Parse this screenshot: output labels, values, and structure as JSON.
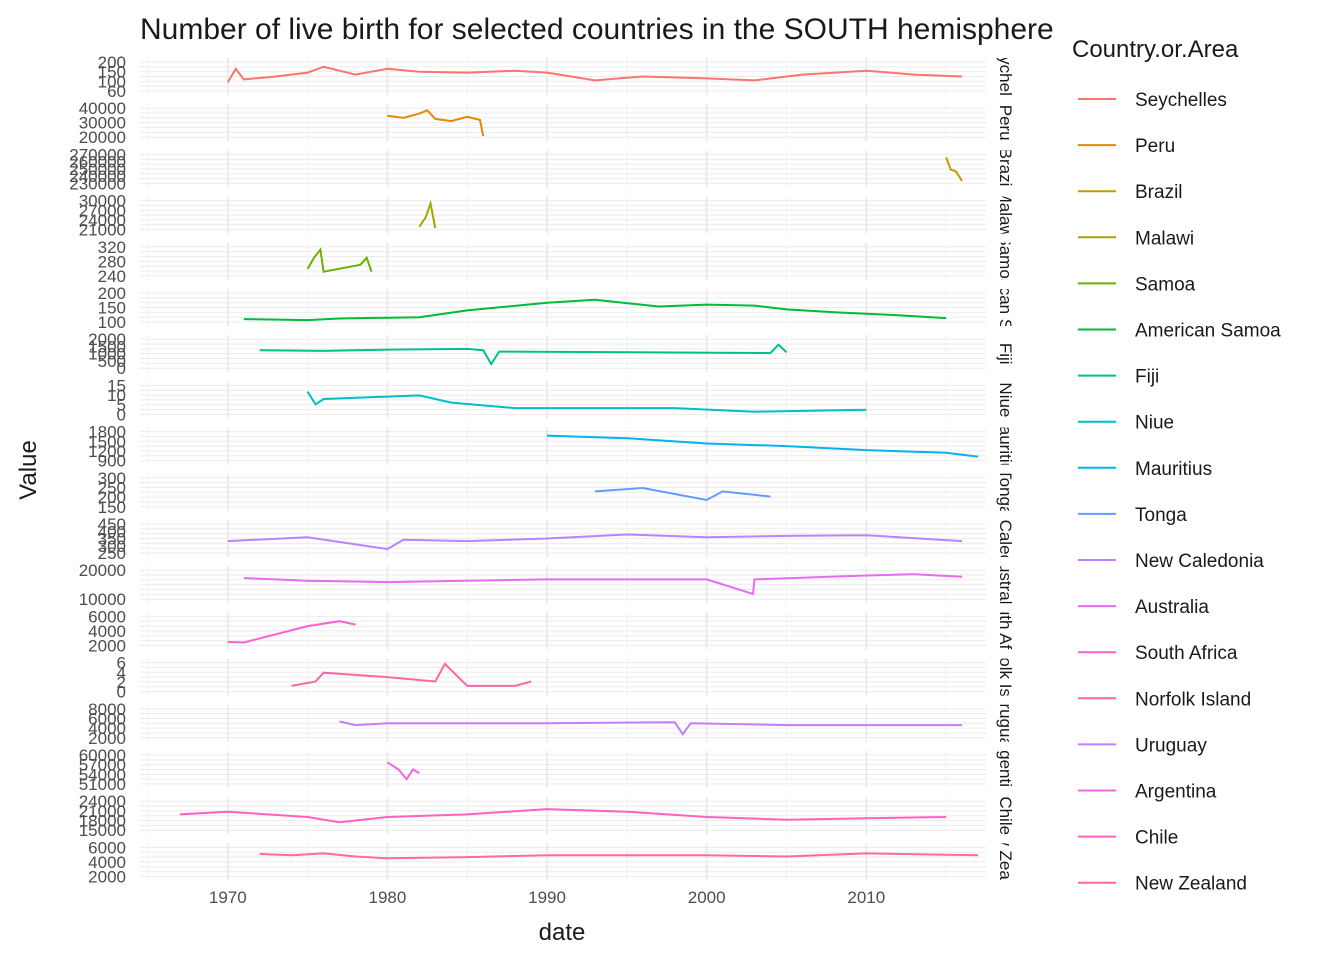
{
  "chart_data": {
    "type": "line",
    "title": "Number of live birth for selected countries in the SOUTH hemisphere",
    "xlabel": "date",
    "ylabel": "Value",
    "xlim": [
      1964.5,
      2017.5
    ],
    "x_ticks": [
      "1970",
      "1980",
      "1990",
      "2000",
      "2010"
    ],
    "grid": true,
    "legend": {
      "title": "Country.or.Area",
      "placement": "right"
    },
    "series": [
      {
        "name": "Seychelles",
        "strip": "Seychelles",
        "color": "#F8766D",
        "ylim": [
          55,
          205
        ],
        "y_ticks": [
          "200",
          "150",
          "100",
          "60"
        ],
        "x": [
          1970,
          1970.5,
          1971,
          1973,
          1975,
          1976,
          1978,
          1980,
          1982,
          1985,
          1988,
          1990,
          1993,
          1996,
          2000,
          2003,
          2006,
          2010,
          2013,
          2016
        ],
        "y": [
          100,
          170,
          115,
          130,
          150,
          180,
          140,
          170,
          155,
          150,
          160,
          150,
          110,
          130,
          120,
          110,
          140,
          160,
          140,
          130
        ]
      },
      {
        "name": "Peru",
        "strip": "Peru",
        "color": "#E58700",
        "ylim": [
          19000,
          46000
        ],
        "y_ticks": [
          "40000",
          "30000",
          "20000"
        ],
        "x": [
          1980,
          1981,
          1982,
          1982.5,
          1983,
          1984,
          1985,
          1985.8,
          1986
        ],
        "y": [
          39000,
          37000,
          41000,
          44000,
          36000,
          34000,
          38000,
          35000,
          20000
        ]
      },
      {
        "name": "Brazil",
        "strip": "Brazil",
        "color": "#C99800",
        "ylim": [
          228000,
          275000
        ],
        "y_ticks": [
          "270000",
          "260000",
          "250000",
          "240000",
          "230000"
        ],
        "x": [
          2015,
          2015.3,
          2015.6,
          2016
        ],
        "y": [
          270000,
          250000,
          248000,
          232000
        ]
      },
      {
        "name": "Malawi",
        "strip": "Malawi",
        "color": "#A3A500",
        "ylim": [
          20500,
          31000
        ],
        "y_ticks": [
          "30000",
          "27000",
          "24000",
          "21000"
        ],
        "x": [
          1982,
          1982.4,
          1982.7,
          1983
        ],
        "y": [
          21500,
          25000,
          30000,
          21000
        ]
      },
      {
        "name": "Samoa",
        "strip": "Samoa",
        "color": "#6BB100",
        "ylim": [
          225,
          330
        ],
        "y_ticks": [
          "320",
          "280",
          "240"
        ],
        "x": [
          1975,
          1975.4,
          1975.8,
          1976,
          1978.3,
          1978.7,
          1979
        ],
        "y": [
          250,
          290,
          320,
          240,
          265,
          290,
          240
        ]
      },
      {
        "name": "American Samoa",
        "strip": "American Samoa",
        "color": "#00BA38",
        "ylim": [
          60,
          210
        ],
        "y_ticks": [
          "200",
          "150",
          "100"
        ],
        "x": [
          1971,
          1975,
          1977,
          1982,
          1985,
          1990,
          1993,
          1997,
          2000,
          2003,
          2005,
          2008,
          2012,
          2015
        ],
        "y": [
          75,
          70,
          78,
          85,
          120,
          160,
          175,
          140,
          150,
          145,
          125,
          110,
          95,
          80
        ]
      },
      {
        "name": "Fiji",
        "strip": "Fiji",
        "color": "#00C08B",
        "ylim": [
          0,
          2100
        ],
        "y_ticks": [
          "2000",
          "1500",
          "1000",
          "500",
          "0"
        ],
        "x": [
          1972,
          1976,
          1980,
          1985,
          1986,
          1986.5,
          1987,
          2004,
          2004.5,
          2005
        ],
        "y": [
          1300,
          1250,
          1350,
          1400,
          1300,
          300,
          1200,
          1100,
          1700,
          1150
        ]
      },
      {
        "name": "Niue",
        "strip": "Niue",
        "color": "#00BFC4",
        "ylim": [
          -0.5,
          15.5
        ],
        "y_ticks": [
          "15",
          "10",
          "5",
          "0"
        ],
        "x": [
          1975,
          1975.5,
          1976,
          1982,
          1984,
          1988,
          1998,
          2003,
          2009.5,
          2010
        ],
        "y": [
          12,
          5,
          8,
          10,
          6,
          3,
          3,
          1,
          2,
          2
        ]
      },
      {
        "name": "Mauritius",
        "strip": "Mauritius",
        "color": "#00B4F0",
        "ylim": [
          800,
          1900
        ],
        "y_ticks": [
          "1800",
          "1500",
          "1200",
          "900"
        ],
        "x": [
          1990,
          1995,
          2000,
          2005,
          2010,
          2015,
          2017
        ],
        "y": [
          1750,
          1650,
          1450,
          1350,
          1200,
          1100,
          950
        ]
      },
      {
        "name": "Tonga",
        "strip": "Tonga",
        "color": "#619CFF",
        "ylim": [
          140,
          310
        ],
        "y_ticks": [
          "300",
          "250",
          "200",
          "150"
        ],
        "x": [
          1993,
          1996,
          2000,
          2001,
          2004
        ],
        "y": [
          230,
          250,
          180,
          230,
          200
        ]
      },
      {
        "name": "New Caledonia",
        "strip": "New Caledonia",
        "color": "#B983FF",
        "ylim": [
          240,
          460
        ],
        "y_ticks": [
          "450",
          "400",
          "350",
          "300",
          "250"
        ],
        "x": [
          1970,
          1975,
          1980,
          1981,
          1985,
          1990,
          1995,
          2000,
          2005,
          2010,
          2016
        ],
        "y": [
          330,
          360,
          270,
          340,
          330,
          350,
          380,
          360,
          370,
          375,
          330
        ]
      },
      {
        "name": "Australia",
        "strip": "Australia",
        "color": "#E76BF3",
        "ylim": [
          5000,
          27000
        ],
        "y_ticks": [
          "20000",
          "10000"
        ],
        "x": [
          1971,
          1975,
          1980,
          1990,
          2000,
          2002.9,
          2003,
          2010,
          2013,
          2016
        ],
        "y": [
          21000,
          19000,
          18000,
          20000,
          20000,
          9000,
          20000,
          23000,
          24000,
          22000
        ]
      },
      {
        "name": "South Africa",
        "strip": "South Africa",
        "color": "#FD61D1",
        "ylim": [
          1500,
          7500
        ],
        "y_ticks": [
          "6000",
          "4000",
          "2000"
        ],
        "x": [
          1970,
          1971,
          1975,
          1977,
          1978
        ],
        "y": [
          2200,
          2100,
          5500,
          6500,
          5800
        ]
      },
      {
        "name": "Norfolk Island",
        "strip": "Norfolk Island",
        "color": "#FF67A4",
        "ylim": [
          -0.3,
          6.3
        ],
        "y_ticks": [
          "6",
          "4",
          "2",
          "0"
        ],
        "x": [
          1974,
          1975.5,
          1976,
          1980,
          1983,
          1983.6,
          1985,
          1988,
          1989
        ],
        "y": [
          1,
          2,
          4,
          3,
          2,
          6,
          1,
          1,
          2
        ]
      },
      {
        "name": "Uruguay",
        "strip": "Uruguay",
        "color": "#C77CFF",
        "ylim": [
          1000,
          9000
        ],
        "y_ticks": [
          "8000",
          "6000",
          "4000",
          "2000"
        ],
        "x": [
          1977,
          1978,
          1980,
          1990,
          1998,
          1998.5,
          1999,
          2005,
          2016
        ],
        "y": [
          5500,
          4500,
          5000,
          5000,
          5300,
          2000,
          5000,
          4500,
          4500
        ]
      },
      {
        "name": "Argentina",
        "strip": "Argentina",
        "color": "#F564E3",
        "ylim": [
          50000,
          62000
        ],
        "y_ticks": [
          "60000",
          "57000",
          "54000",
          "51000"
        ],
        "x": [
          1980,
          1980.7,
          1981.2,
          1981.6,
          1982
        ],
        "y": [
          59000,
          56000,
          52000,
          56000,
          54500
        ]
      },
      {
        "name": "Chile",
        "strip": "Chile",
        "color": "#FF61C3",
        "ylim": [
          14000,
          25000
        ],
        "y_ticks": [
          "24000",
          "21000",
          "18000",
          "15000"
        ],
        "x": [
          1967,
          1970,
          1975,
          1977,
          1980,
          1985,
          1990,
          1995,
          2000,
          2005,
          2010,
          2015
        ],
        "y": [
          20000,
          21000,
          19000,
          17000,
          19000,
          20000,
          22000,
          21000,
          19000,
          18000,
          18500,
          19000
        ]
      },
      {
        "name": "New Zealand",
        "strip": "New Zealand",
        "color": "#FF6C91",
        "ylim": [
          1500,
          6300
        ],
        "y_ticks": [
          "6000",
          "4000",
          "2000"
        ],
        "x": [
          1972,
          1974,
          1976,
          1978,
          1980,
          1985,
          1990,
          1995,
          2000,
          2005,
          2010,
          2015,
          2017
        ],
        "y": [
          5200,
          5000,
          5300,
          4800,
          4500,
          4700,
          5000,
          5000,
          5000,
          4800,
          5300,
          5100,
          5000
        ]
      }
    ]
  }
}
